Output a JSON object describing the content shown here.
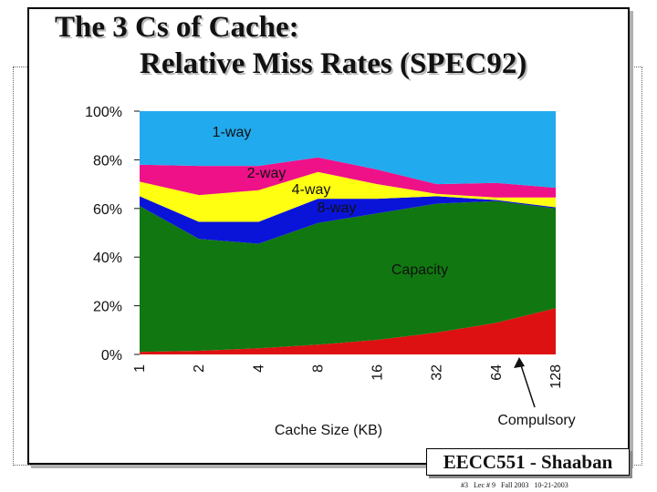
{
  "title": {
    "line1": "The 3 Cs of Cache:",
    "line2": "Relative Miss Rates (SPEC92)"
  },
  "footer": {
    "course": "EECC551 - Shaaban",
    "meta": "#3   Lec # 9   Fall 2003   10-21-2003"
  },
  "colors": {
    "compulsory": "#dd1111",
    "capacity": "#117711",
    "eight_way": "#0a14d8",
    "four_way": "#ffff11",
    "two_way": "#ee1188",
    "one_way": "#22aaee"
  },
  "chart_data": {
    "type": "area",
    "stacked": true,
    "x": [
      "1",
      "2",
      "4",
      "8",
      "16",
      "32",
      "64",
      "128"
    ],
    "xlabel": "Cache Size (KB)",
    "ylabel": "",
    "ylim": [
      0,
      100
    ],
    "yticks": [
      "0%",
      "20%",
      "40%",
      "60%",
      "80%",
      "100%"
    ],
    "grid": false,
    "series": [
      {
        "name": "Compulsory",
        "values": [
          1,
          1.5,
          2.5,
          4,
          6,
          9,
          13,
          19
        ]
      },
      {
        "name": "Capacity",
        "values": [
          60,
          46,
          43,
          50,
          52,
          53,
          50,
          41
        ]
      },
      {
        "name": "8-way",
        "values": [
          4,
          7,
          9,
          10,
          6,
          3,
          0.5,
          0.5
        ]
      },
      {
        "name": "4-way",
        "values": [
          6,
          11,
          13,
          11,
          6,
          1,
          1,
          4
        ]
      },
      {
        "name": "2-way",
        "values": [
          7,
          12,
          10,
          6,
          6,
          4,
          6,
          4
        ]
      },
      {
        "name": "1-way",
        "values": [
          22,
          22.5,
          22.5,
          19,
          24,
          30,
          29.5,
          31.5
        ]
      }
    ]
  }
}
